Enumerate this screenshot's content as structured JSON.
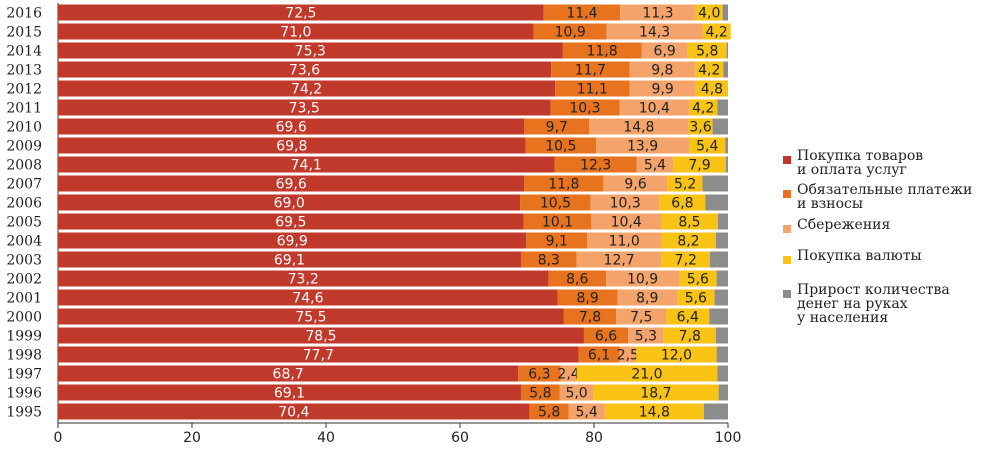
{
  "chart_data": {
    "type": "bar",
    "orientation": "horizontal",
    "stacked": true,
    "categories": [
      "2016",
      "2015",
      "2014",
      "2013",
      "2012",
      "2011",
      "2010",
      "2009",
      "2008",
      "2007",
      "2006",
      "2005",
      "2004",
      "2003",
      "2002",
      "2001",
      "2000",
      "1999",
      "1998",
      "1997",
      "1996",
      "1995"
    ],
    "series": [
      {
        "name": "Покупка товаров\nи оплата услуг",
        "color": "#c0392b",
        "values": [
          72.5,
          71.0,
          75.3,
          73.6,
          74.2,
          73.5,
          69.6,
          69.8,
          74.1,
          69.6,
          69.0,
          69.5,
          69.9,
          69.1,
          73.2,
          74.6,
          75.5,
          78.5,
          77.7,
          68.7,
          69.1,
          70.4
        ],
        "labels": [
          "72,5",
          "71,0",
          "75,3",
          "73,6",
          "74,2",
          "73,5",
          "69,6",
          "69,8",
          "74,1",
          "69,6",
          "69,0",
          "69,5",
          "69,9",
          "69,1",
          "73,2",
          "74,6",
          "75,5",
          "78,5",
          "77,7",
          "68,7",
          "69,1",
          "70,4"
        ]
      },
      {
        "name": "Обязательные платежи\nи взносы",
        "color": "#e8731f",
        "values": [
          11.4,
          10.9,
          11.8,
          11.7,
          11.1,
          10.3,
          9.7,
          10.5,
          12.3,
          11.8,
          10.5,
          10.1,
          9.1,
          8.3,
          8.6,
          8.9,
          7.8,
          6.6,
          6.1,
          6.3,
          5.8,
          5.8
        ],
        "labels": [
          "11,4",
          "10,9",
          "11,8",
          "11,7",
          "11,1",
          "10,3",
          "9,7",
          "10,5",
          "12,3",
          "11,8",
          "10,5",
          "10,1",
          "9,1",
          "8,3",
          "8,6",
          "8,9",
          "7,8",
          "6,6",
          "6,1",
          "6,3",
          "5,8",
          "5,8"
        ]
      },
      {
        "name": "Сбережения",
        "color": "#f4a46a",
        "values": [
          11.3,
          14.3,
          6.9,
          9.8,
          9.9,
          10.4,
          14.8,
          13.9,
          5.4,
          9.6,
          10.3,
          10.4,
          11.0,
          12.7,
          10.9,
          8.9,
          7.5,
          5.3,
          2.5,
          2.4,
          5.0,
          5.4
        ],
        "labels": [
          "11,3",
          "14,3",
          "6,9",
          "9,8",
          "9,9",
          "10,4",
          "14,8",
          "13,9",
          "5,4",
          "9,6",
          "10,3",
          "10,4",
          "11,0",
          "12,7",
          "10,9",
          "8,9",
          "7,5",
          "5,3",
          "2,5",
          "2,4",
          "5,0",
          "5,4"
        ]
      },
      {
        "name": "Покупка валюты",
        "color": "#f9c316",
        "values": [
          4.0,
          4.2,
          5.8,
          4.2,
          4.8,
          4.2,
          3.6,
          5.4,
          7.9,
          5.2,
          6.8,
          8.5,
          8.2,
          7.2,
          5.6,
          5.6,
          6.4,
          7.8,
          12.0,
          21.0,
          18.7,
          14.8
        ],
        "labels": [
          "4,0",
          "4,2",
          "5,8",
          "4,2",
          "4,8",
          "4,2",
          "3,6",
          "5,4",
          "7,9",
          "5,2",
          "6,8",
          "8,5",
          "8,2",
          "7,2",
          "5,6",
          "5,6",
          "6,4",
          "7,8",
          "12,0",
          "21,0",
          "18,7",
          "14,8"
        ]
      },
      {
        "name": "Прирост количества\nденег на руках\nу населения",
        "color": "#8c8c8c",
        "values": [
          0.8,
          0.0,
          0.2,
          0.7,
          0.0,
          1.6,
          2.3,
          0.4,
          0.3,
          3.8,
          3.4,
          1.5,
          1.8,
          2.7,
          1.7,
          2.0,
          2.8,
          1.8,
          1.7,
          1.6,
          1.4,
          3.6
        ],
        "labels": []
      }
    ],
    "xlim": [
      0,
      100
    ],
    "xticks": [
      "0",
      "20",
      "40",
      "60",
      "80",
      "100"
    ],
    "legend_position": "right",
    "grid": false
  }
}
